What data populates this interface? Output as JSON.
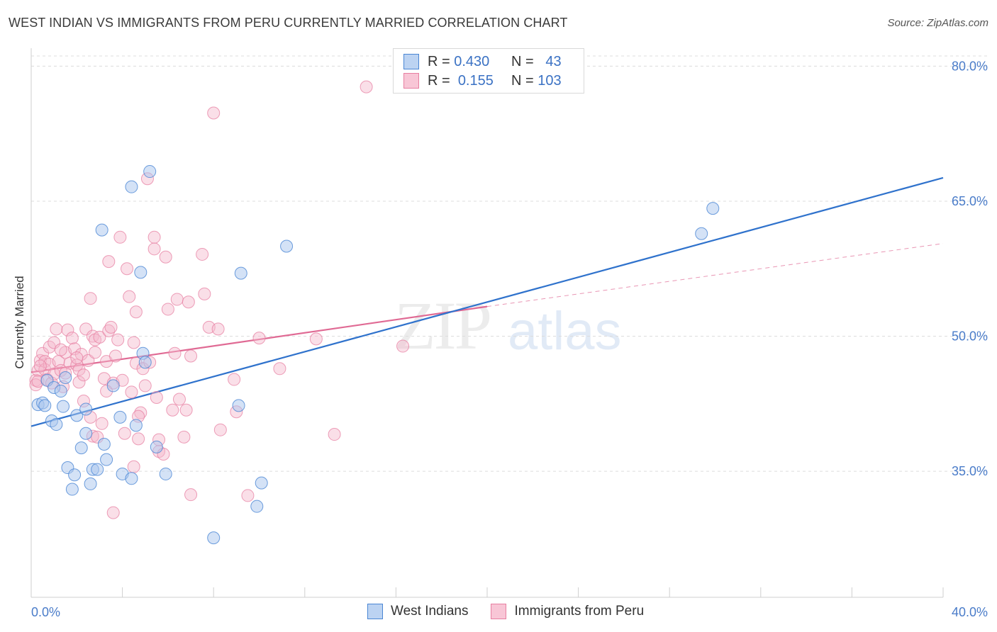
{
  "title": "WEST INDIAN VS IMMIGRANTS FROM PERU CURRENTLY MARRIED CORRELATION CHART",
  "source": "Source: ZipAtlas.com",
  "watermark": {
    "zip": "ZIP",
    "atlas": "atlas"
  },
  "legend": {
    "rows": [
      {
        "r_label": "R =",
        "r_value": "0.430",
        "n_label": "N =",
        "n_value": "43"
      },
      {
        "r_label": "R =",
        "r_value": "0.155",
        "n_label": "N =",
        "n_value": "103"
      }
    ]
  },
  "bottom_legend": [
    "West Indians",
    "Immigrants from Peru"
  ],
  "colors": {
    "blue_fill": "#a9c6ee",
    "blue_stroke": "#4a86d4",
    "blue_line": "#2f72cc",
    "pink_fill": "#f5b8cb",
    "pink_stroke": "#e77fa1",
    "pink_line": "#e06a94",
    "tick": "#4a7cc9",
    "grid": "#dcdcdc"
  },
  "chart_data": {
    "type": "scatter",
    "title": "WEST INDIAN VS IMMIGRANTS FROM PERU CURRENTLY MARRIED CORRELATION CHART",
    "xlabel": "",
    "ylabel": "Currently Married",
    "xlim": [
      0,
      40
    ],
    "ylim": [
      21,
      82
    ],
    "x_tick_labels": [
      "0.0%",
      "40.0%"
    ],
    "y_ticks": [
      35,
      50,
      65,
      80
    ],
    "y_tick_labels": [
      "35.0%",
      "50.0%",
      "65.0%",
      "80.0%"
    ],
    "grid": "horizontal dashed",
    "legend_position": "top-center",
    "series": [
      {
        "name": "West Indians",
        "R": 0.43,
        "N": 43,
        "trend": {
          "x": [
            0,
            40
          ],
          "y": [
            40.0,
            67.6
          ],
          "style": "solid"
        },
        "points": [
          [
            0.3,
            42.4
          ],
          [
            0.5,
            42.6
          ],
          [
            0.6,
            42.3
          ],
          [
            0.7,
            45.1
          ],
          [
            0.9,
            40.6
          ],
          [
            1.0,
            44.3
          ],
          [
            1.1,
            40.2
          ],
          [
            1.3,
            43.9
          ],
          [
            1.4,
            42.2
          ],
          [
            1.5,
            45.4
          ],
          [
            1.6,
            35.4
          ],
          [
            1.8,
            33.0
          ],
          [
            1.9,
            34.6
          ],
          [
            2.0,
            41.2
          ],
          [
            2.2,
            37.6
          ],
          [
            2.4,
            41.9
          ],
          [
            2.4,
            39.2
          ],
          [
            2.6,
            33.6
          ],
          [
            2.7,
            35.2
          ],
          [
            2.9,
            35.2
          ],
          [
            3.1,
            61.8
          ],
          [
            3.2,
            38.0
          ],
          [
            3.3,
            36.3
          ],
          [
            3.6,
            44.5
          ],
          [
            3.9,
            41.0
          ],
          [
            4.0,
            34.7
          ],
          [
            4.4,
            34.2
          ],
          [
            4.4,
            66.6
          ],
          [
            4.6,
            40.1
          ],
          [
            4.8,
            57.1
          ],
          [
            4.9,
            48.1
          ],
          [
            5.0,
            47.1
          ],
          [
            5.2,
            68.3
          ],
          [
            5.5,
            37.7
          ],
          [
            5.9,
            34.7
          ],
          [
            8.0,
            27.6
          ],
          [
            9.1,
            42.3
          ],
          [
            9.2,
            57.0
          ],
          [
            9.9,
            31.1
          ],
          [
            10.1,
            33.7
          ],
          [
            11.2,
            60.0
          ],
          [
            29.4,
            61.4
          ],
          [
            29.9,
            64.2
          ]
        ]
      },
      {
        "name": "Immigrants from Peru",
        "R": 0.155,
        "N": 103,
        "trend": {
          "x": [
            0,
            20
          ],
          "y": [
            46.0,
            53.3
          ],
          "style": "solid"
        },
        "trend_extension": {
          "x": [
            20,
            40
          ],
          "y": [
            53.3,
            60.3
          ],
          "style": "dashed"
        },
        "points": [
          [
            0.2,
            45.1
          ],
          [
            0.2,
            44.6
          ],
          [
            0.3,
            46.2
          ],
          [
            0.3,
            45.0
          ],
          [
            0.4,
            47.3
          ],
          [
            0.5,
            48.1
          ],
          [
            0.6,
            47.2
          ],
          [
            0.6,
            46.3
          ],
          [
            0.7,
            45.2
          ],
          [
            0.8,
            48.8
          ],
          [
            0.8,
            46.9
          ],
          [
            0.9,
            44.8
          ],
          [
            1.0,
            45.8
          ],
          [
            1.0,
            49.3
          ],
          [
            1.1,
            50.8
          ],
          [
            1.2,
            47.2
          ],
          [
            1.3,
            46.2
          ],
          [
            1.4,
            44.4
          ],
          [
            1.5,
            48.2
          ],
          [
            1.5,
            45.9
          ],
          [
            1.6,
            50.7
          ],
          [
            1.7,
            47.0
          ],
          [
            1.8,
            49.8
          ],
          [
            1.9,
            48.6
          ],
          [
            2.0,
            46.8
          ],
          [
            2.1,
            44.9
          ],
          [
            2.1,
            46.3
          ],
          [
            2.2,
            48.0
          ],
          [
            2.3,
            45.7
          ],
          [
            2.3,
            42.8
          ],
          [
            2.4,
            50.8
          ],
          [
            2.5,
            47.3
          ],
          [
            2.6,
            54.2
          ],
          [
            2.6,
            41.0
          ],
          [
            2.7,
            50.0
          ],
          [
            2.7,
            38.9
          ],
          [
            2.8,
            49.6
          ],
          [
            2.8,
            48.2
          ],
          [
            2.9,
            38.8
          ],
          [
            3.0,
            49.9
          ],
          [
            3.1,
            40.3
          ],
          [
            3.2,
            45.3
          ],
          [
            3.3,
            47.2
          ],
          [
            3.4,
            50.6
          ],
          [
            3.4,
            58.3
          ],
          [
            3.5,
            51.0
          ],
          [
            3.6,
            44.8
          ],
          [
            3.6,
            30.4
          ],
          [
            3.7,
            47.8
          ],
          [
            3.8,
            49.6
          ],
          [
            3.9,
            61.0
          ],
          [
            4.0,
            45.1
          ],
          [
            4.1,
            39.2
          ],
          [
            4.2,
            57.5
          ],
          [
            4.3,
            54.4
          ],
          [
            4.4,
            43.8
          ],
          [
            4.5,
            49.3
          ],
          [
            4.5,
            35.5
          ],
          [
            4.6,
            52.7
          ],
          [
            4.6,
            47.0
          ],
          [
            4.7,
            38.6
          ],
          [
            4.8,
            41.5
          ],
          [
            4.9,
            46.4
          ],
          [
            5.0,
            44.5
          ],
          [
            5.1,
            67.5
          ],
          [
            5.2,
            47.1
          ],
          [
            5.4,
            59.7
          ],
          [
            5.4,
            61.0
          ],
          [
            5.5,
            43.2
          ],
          [
            5.6,
            37.2
          ],
          [
            5.6,
            38.5
          ],
          [
            5.8,
            36.9
          ],
          [
            5.9,
            58.8
          ],
          [
            6.0,
            53.0
          ],
          [
            6.2,
            41.8
          ],
          [
            6.3,
            48.1
          ],
          [
            6.4,
            54.1
          ],
          [
            6.7,
            38.8
          ],
          [
            6.8,
            41.8
          ],
          [
            6.9,
            53.8
          ],
          [
            7.0,
            32.4
          ],
          [
            7.0,
            47.8
          ],
          [
            7.5,
            59.1
          ],
          [
            7.6,
            54.7
          ],
          [
            7.8,
            51.0
          ],
          [
            8.0,
            74.8
          ],
          [
            8.2,
            50.8
          ],
          [
            8.3,
            39.6
          ],
          [
            8.9,
            45.2
          ],
          [
            9.0,
            41.6
          ],
          [
            9.5,
            32.3
          ],
          [
            10.0,
            49.8
          ],
          [
            10.9,
            46.4
          ],
          [
            12.5,
            49.7
          ],
          [
            13.3,
            39.1
          ],
          [
            14.7,
            77.7
          ],
          [
            16.3,
            48.9
          ],
          [
            0.4,
            46.7
          ],
          [
            1.3,
            48.5
          ],
          [
            3.3,
            43.9
          ],
          [
            4.7,
            41.1
          ],
          [
            6.5,
            43.0
          ],
          [
            2.0,
            47.6
          ]
        ]
      }
    ]
  }
}
